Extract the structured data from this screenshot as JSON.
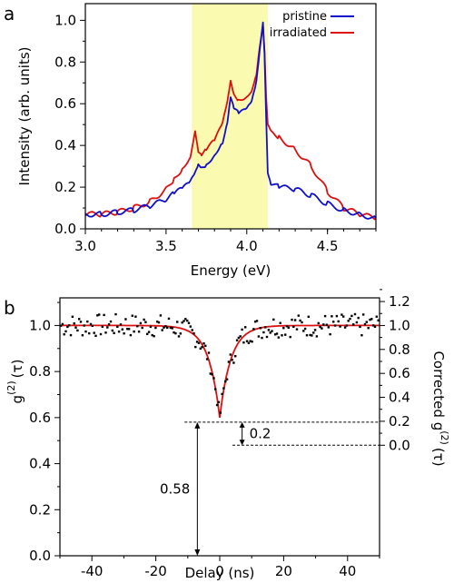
{
  "figure": {
    "panel_a": "a",
    "panel_b": "b"
  },
  "chart_data": [
    {
      "type": "line",
      "xlabel": "Energy (eV)",
      "ylabel": "Intensity (arb. units)",
      "xlim": [
        3.0,
        4.8
      ],
      "ylim": [
        0.0,
        1.08
      ],
      "x_ticks": [
        "3.0",
        "3.5",
        "4.0",
        "4.5"
      ],
      "y_ticks": [
        "0.0",
        "0.2",
        "0.4",
        "0.6",
        "0.8",
        "1.0"
      ],
      "highlight_band": {
        "x": [
          3.66,
          4.13
        ],
        "color": "#fafab0"
      },
      "legend_position": "top-right",
      "series": [
        {
          "name": "pristine",
          "color": "#1010cc",
          "x": [
            3.0,
            3.1,
            3.2,
            3.3,
            3.4,
            3.5,
            3.55,
            3.6,
            3.65,
            3.68,
            3.7,
            3.72,
            3.75,
            3.8,
            3.85,
            3.88,
            3.9,
            3.92,
            3.95,
            4.0,
            4.03,
            4.06,
            4.08,
            4.1,
            4.11,
            4.12,
            4.13,
            4.15,
            4.2,
            4.3,
            4.4,
            4.5,
            4.6,
            4.7,
            4.8
          ],
          "y": [
            0.07,
            0.07,
            0.08,
            0.09,
            0.11,
            0.14,
            0.17,
            0.19,
            0.22,
            0.26,
            0.3,
            0.29,
            0.31,
            0.36,
            0.42,
            0.52,
            0.64,
            0.58,
            0.55,
            0.57,
            0.6,
            0.7,
            0.85,
            0.99,
            0.85,
            0.55,
            0.28,
            0.22,
            0.2,
            0.19,
            0.16,
            0.12,
            0.09,
            0.07,
            0.05
          ]
        },
        {
          "name": "irradiated",
          "color": "#dd1010",
          "x": [
            3.0,
            3.1,
            3.2,
            3.3,
            3.4,
            3.5,
            3.55,
            3.6,
            3.65,
            3.68,
            3.7,
            3.72,
            3.75,
            3.8,
            3.85,
            3.88,
            3.9,
            3.92,
            3.95,
            4.0,
            4.03,
            4.06,
            4.08,
            4.1,
            4.11,
            4.12,
            4.13,
            4.15,
            4.2,
            4.3,
            4.4,
            4.5,
            4.6,
            4.7,
            4.8
          ],
          "y": [
            0.07,
            0.07,
            0.08,
            0.1,
            0.13,
            0.19,
            0.24,
            0.29,
            0.35,
            0.48,
            0.38,
            0.36,
            0.38,
            0.42,
            0.5,
            0.6,
            0.7,
            0.64,
            0.62,
            0.64,
            0.67,
            0.75,
            0.88,
            0.98,
            0.85,
            0.62,
            0.49,
            0.46,
            0.44,
            0.38,
            0.3,
            0.18,
            0.1,
            0.07,
            0.05
          ]
        }
      ]
    },
    {
      "type": "scatter",
      "xlabel": "Delay (ns)",
      "ylabel": "g(2)(τ)",
      "ylabel_parts": {
        "base": "g",
        "sup": "(2)",
        "arg": "(τ)"
      },
      "y2label_parts": {
        "prefix": "Corrected g",
        "sup": "(2)",
        "arg": "(τ)"
      },
      "xlim": [
        -50,
        50
      ],
      "ylim": [
        0.0,
        1.12
      ],
      "y2_map": {
        "y2_at_0": 0.48,
        "y2_scale": 0.52
      },
      "x_ticks": [
        "-40",
        "-20",
        "0",
        "20",
        "40"
      ],
      "y_ticks": [
        "0.0",
        "0.2",
        "0.4",
        "0.6",
        "0.8",
        "1.0"
      ],
      "y2_ticks": [
        "0.0",
        "0.2",
        "0.4",
        "0.6",
        "0.8",
        "1.0",
        "1.2"
      ],
      "fit": {
        "color": "#dd1010",
        "baseline": 1.0,
        "depth": 0.4,
        "width_ns": 3.5
      },
      "data_color": "#000000",
      "data_noise": 0.05,
      "annotations": {
        "dip_value": "0.58",
        "corrected_dip": "0.2"
      }
    }
  ]
}
